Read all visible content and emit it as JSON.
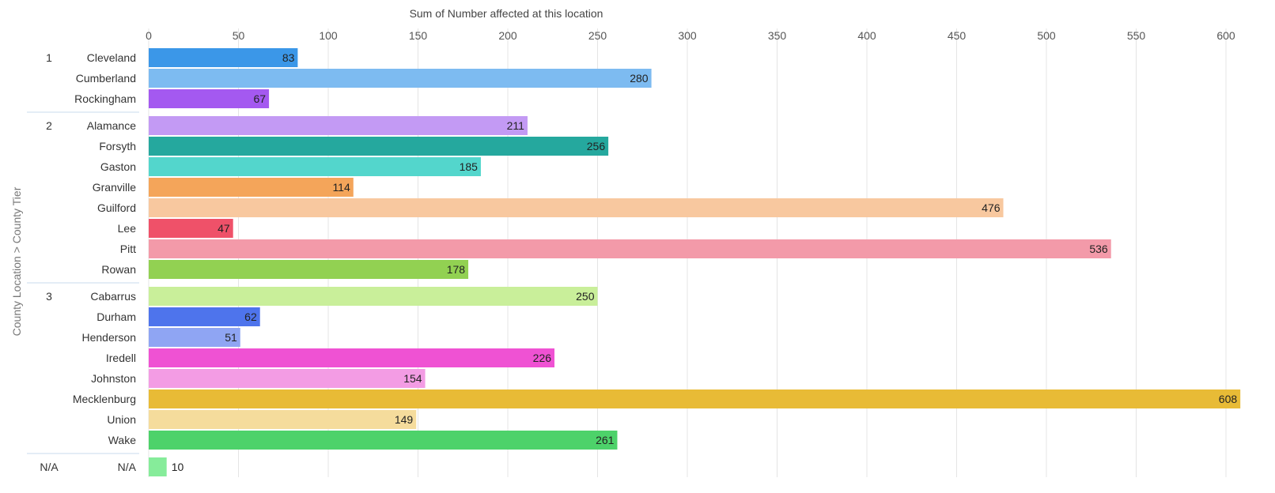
{
  "chart_data": {
    "type": "bar",
    "orientation": "horizontal",
    "title": "Sum of Number affected at this location",
    "xlabel": "Sum of Number affected at this location",
    "ylabel": "County Location > County Tier",
    "xlim": [
      0,
      610
    ],
    "xticks": [
      0,
      50,
      100,
      150,
      200,
      250,
      300,
      350,
      400,
      450,
      500,
      550,
      600
    ],
    "grid": true,
    "axis_position": "top",
    "groups": [
      {
        "tier": "1",
        "bars": [
          {
            "label": "Cleveland",
            "value": 83,
            "color": "#3b97e8"
          },
          {
            "label": "Cumberland",
            "value": 280,
            "color": "#7dbbf1"
          },
          {
            "label": "Rockingham",
            "value": 67,
            "color": "#a459f0"
          }
        ]
      },
      {
        "tier": "2",
        "bars": [
          {
            "label": "Alamance",
            "value": 211,
            "color": "#c39af4"
          },
          {
            "label": "Forsyth",
            "value": 256,
            "color": "#25a89e"
          },
          {
            "label": "Gaston",
            "value": 185,
            "color": "#53d6cc"
          },
          {
            "label": "Granville",
            "value": 114,
            "color": "#f4a55a"
          },
          {
            "label": "Guilford",
            "value": 476,
            "color": "#f8c89f"
          },
          {
            "label": "Lee",
            "value": 47,
            "color": "#ef5169"
          },
          {
            "label": "Pitt",
            "value": 536,
            "color": "#f39aa9"
          },
          {
            "label": "Rowan",
            "value": 178,
            "color": "#92d152"
          }
        ]
      },
      {
        "tier": "3",
        "bars": [
          {
            "label": "Cabarrus",
            "value": 250,
            "color": "#c9ef9a"
          },
          {
            "label": "Durham",
            "value": 62,
            "color": "#4e74ec"
          },
          {
            "label": "Henderson",
            "value": 51,
            "color": "#8fa5f3"
          },
          {
            "label": "Iredell",
            "value": 226,
            "color": "#ef52d3"
          },
          {
            "label": "Johnston",
            "value": 154,
            "color": "#f39ce4"
          },
          {
            "label": "Mecklenburg",
            "value": 608,
            "color": "#e8bb36"
          },
          {
            "label": "Union",
            "value": 149,
            "color": "#f5dc9c"
          },
          {
            "label": "Wake",
            "value": 261,
            "color": "#4dd26a"
          }
        ]
      },
      {
        "tier": "N/A",
        "bars": [
          {
            "label": "N/A",
            "value": 10,
            "color": "#86ec9a"
          }
        ]
      }
    ]
  }
}
